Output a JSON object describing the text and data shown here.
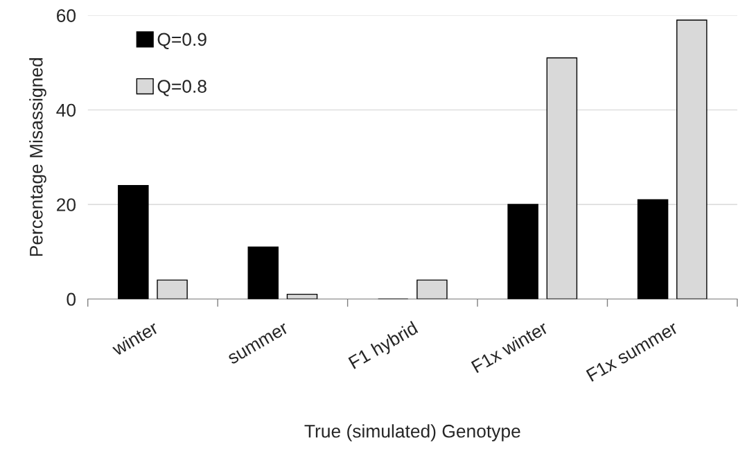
{
  "chart_data": {
    "type": "bar",
    "xlabel": "True (simulated) Genotype",
    "ylabel": "Percentage Misassigned",
    "categories": [
      "winter",
      "summer",
      "F1 hybrid",
      "F1x winter",
      "F1x summer"
    ],
    "series": [
      {
        "name": "Q=0.9",
        "color": "#000000",
        "values": [
          24,
          11,
          0,
          20,
          21
        ]
      },
      {
        "name": "Q=0.8",
        "color": "#d9d9d9",
        "values": [
          4,
          1,
          4,
          51,
          59
        ]
      }
    ],
    "ylim": [
      0,
      60
    ],
    "yticks": [
      0,
      20,
      40,
      60
    ],
    "grid": "y",
    "legend": "top left"
  }
}
